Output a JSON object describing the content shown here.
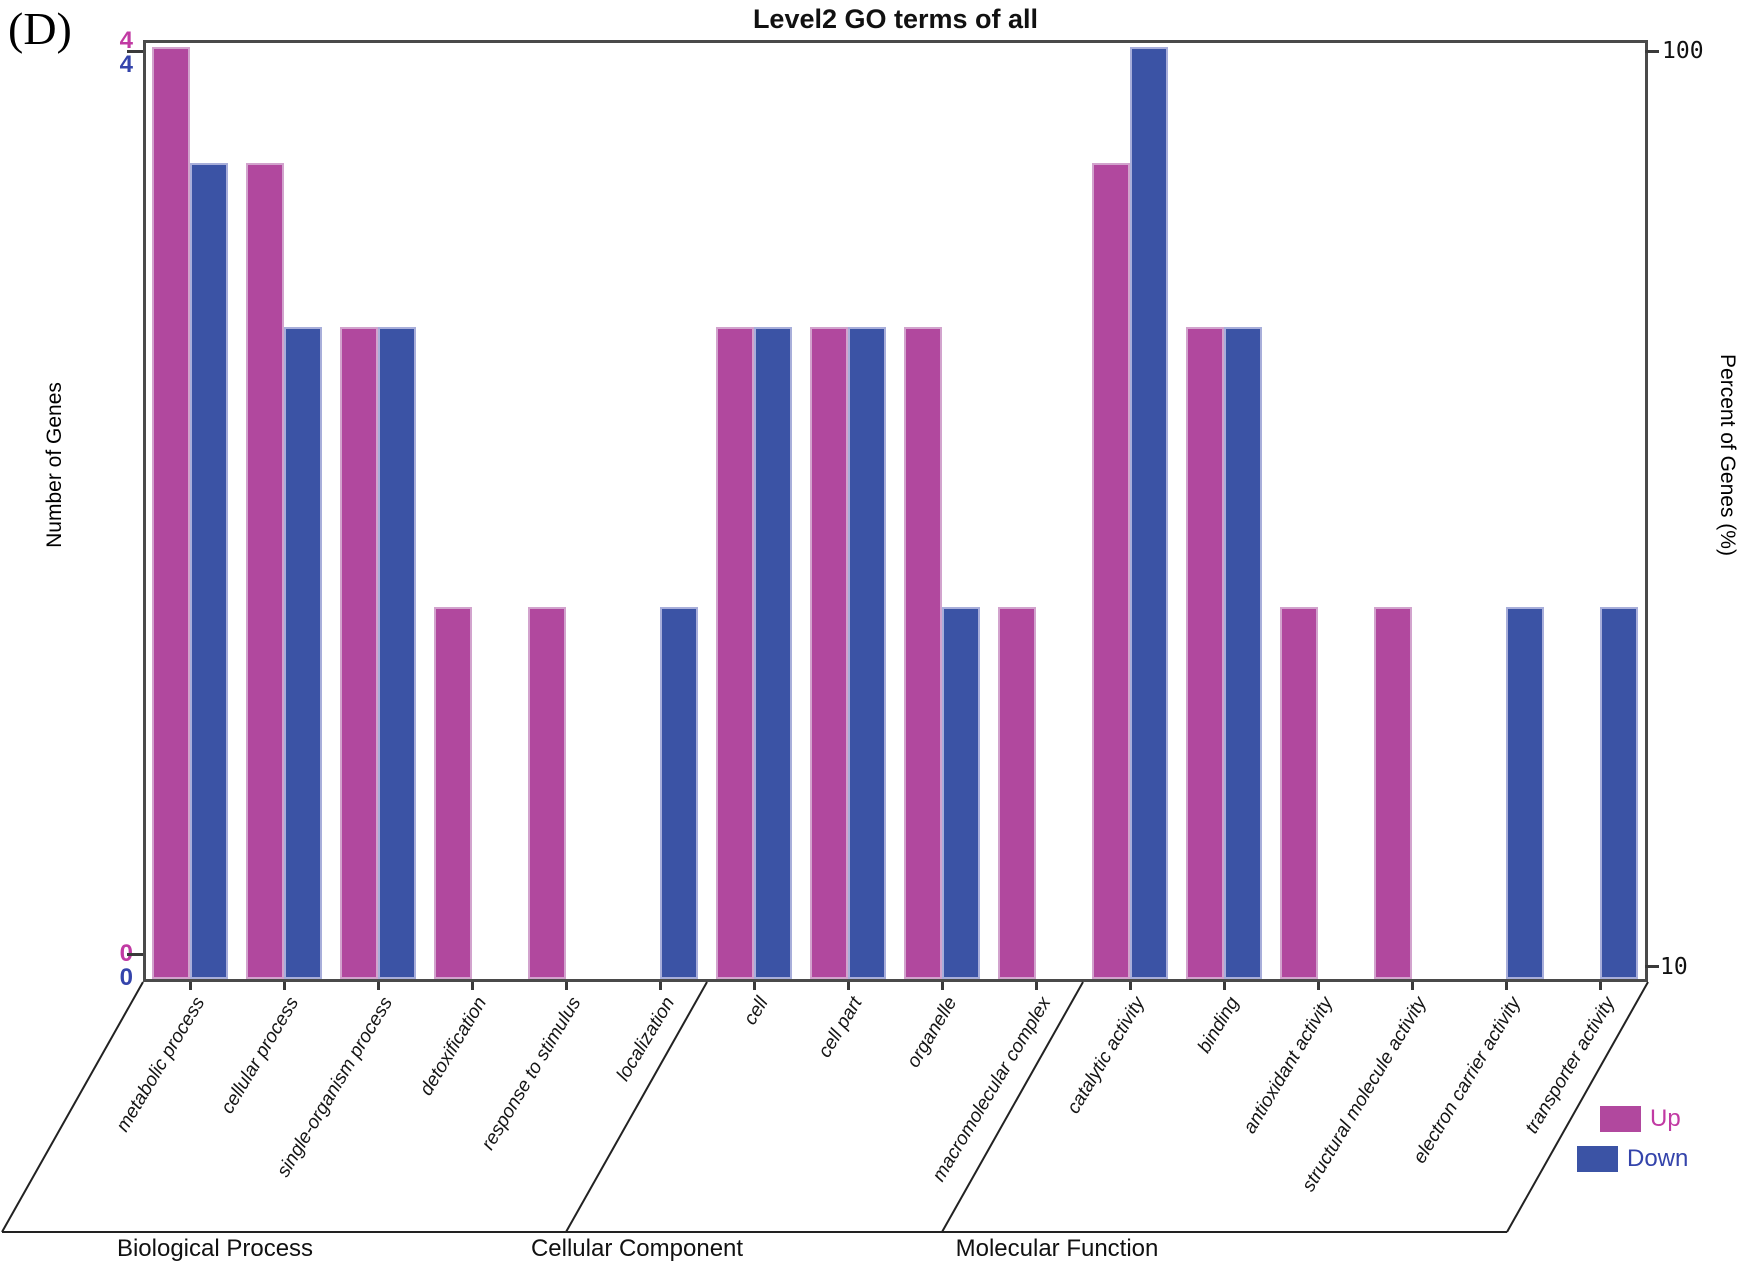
{
  "figure_label": "(D)",
  "title": "Level2 GO terms of all",
  "y_left": {
    "title": "Number of Genes",
    "top_tick_up": "4",
    "top_tick_down": "4",
    "bottom_tick_up": "0",
    "bottom_tick_down": "0"
  },
  "y_right": {
    "title": "Percent of Genes (%)",
    "top_tick": "100",
    "bottom_tick": "10"
  },
  "legend": {
    "up_label": "Up",
    "down_label": "Down"
  },
  "colors": {
    "up": "#b1489e",
    "down": "#3b53a5",
    "up_text": "#c13aa3",
    "down_text": "#3444ab",
    "frame": "#4a4a4a"
  },
  "chart_data": {
    "type": "bar",
    "title": "Level2 GO terms of all",
    "categories": [
      "metabolic process",
      "cellular process",
      "single-organism process",
      "detoxification",
      "response to stimulus",
      "localization",
      "cell",
      "cell part",
      "organelle",
      "macromolecular complex",
      "catalytic activity",
      "binding",
      "antioxidant activity",
      "structural molecule activity",
      "electron carrier activity",
      "transporter activity"
    ],
    "groups": [
      {
        "label": "Biological Process",
        "count": 6
      },
      {
        "label": "Cellular Component",
        "count": 4
      },
      {
        "label": "Molecular Function",
        "count": 6
      }
    ],
    "series": [
      {
        "name": "Up",
        "color": "#b1489e",
        "values": [
          4,
          3,
          2,
          1,
          1,
          0,
          2,
          2,
          2,
          1,
          3,
          2,
          1,
          1,
          0,
          0
        ],
        "percent": [
          100,
          75,
          50,
          25,
          25,
          0,
          50,
          50,
          50,
          25,
          75,
          50,
          25,
          25,
          0,
          0
        ]
      },
      {
        "name": "Down",
        "color": "#3b53a5",
        "values": [
          3,
          2,
          2,
          0,
          0,
          1,
          2,
          2,
          1,
          0,
          4,
          2,
          0,
          0,
          1,
          1
        ],
        "percent": [
          75,
          50,
          50,
          0,
          0,
          25,
          50,
          50,
          25,
          0,
          100,
          50,
          0,
          0,
          25,
          25
        ]
      }
    ],
    "left_axis": {
      "label": "Number of Genes",
      "ticks": [
        4,
        0
      ],
      "max": 4,
      "min": 0
    },
    "right_axis": {
      "label": "Percent of Genes (%)",
      "ticks": [
        100,
        10
      ]
    },
    "scale": "log",
    "grid": false,
    "legend_position": "bottom-right"
  }
}
